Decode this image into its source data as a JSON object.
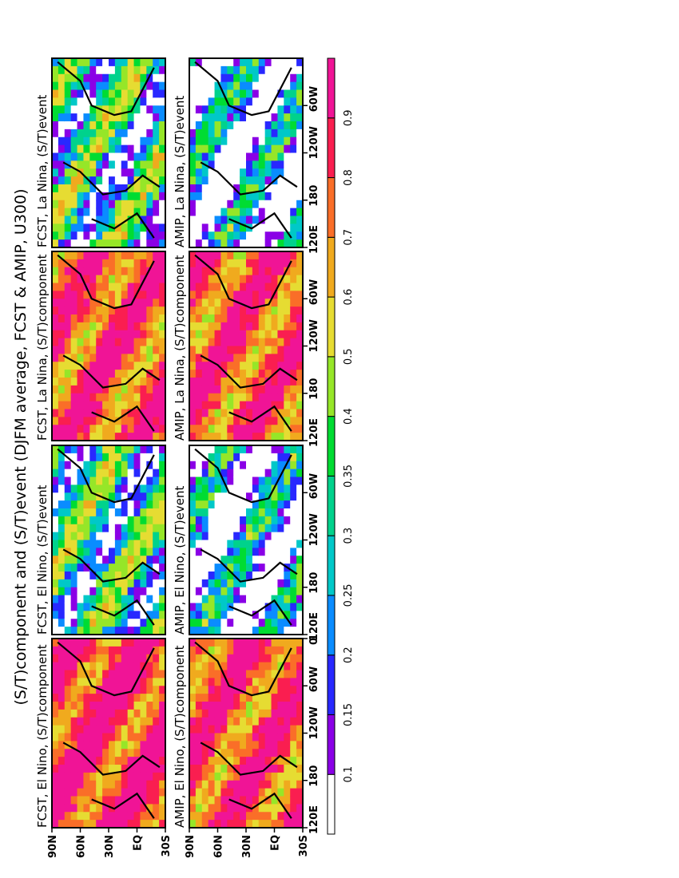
{
  "chart_data": {
    "type": "heatmap",
    "title": "(S/T)component and (S/T)event (DJFM average, FCST & AMIP, U300)",
    "grid": false,
    "legend_placement": "right",
    "orientation_note": "figure rotated 90 degrees counter-clockwise",
    "x_ticks": [
      "120E",
      "180",
      "120W",
      "60W",
      "0"
    ],
    "y_ticks": [
      "90N",
      "60N",
      "30N",
      "EQ",
      "30S"
    ],
    "xlim": [
      "120E",
      "0"
    ],
    "ylim": [
      "30S",
      "90N"
    ],
    "colorbar": {
      "levels": [
        "0.1",
        "0.15",
        "0.2",
        "0.25",
        "0.3",
        "0.35",
        "0.4",
        "0.5",
        "0.6",
        "0.7",
        "0.8",
        "0.9"
      ],
      "colors": [
        "#ffffff",
        "#8a00e6",
        "#2828ff",
        "#0a8cff",
        "#00c8c8",
        "#00d28c",
        "#00dc32",
        "#96e628",
        "#e6dc32",
        "#f0aa1e",
        "#fa6e28",
        "#fa1e50",
        "#f01496"
      ]
    },
    "panels": [
      {
        "title": "FCST, El Nino, (S/T)component",
        "model": "FCST",
        "enso": "El Nino",
        "measure": "component",
        "level": 0.85
      },
      {
        "title": "FCST, El Nino, (S/T)event",
        "model": "FCST",
        "enso": "El Nino",
        "measure": "event",
        "level": 0.3
      },
      {
        "title": "FCST, La Nina, (S/T)component",
        "model": "FCST",
        "enso": "La Nina",
        "measure": "component",
        "level": 0.8
      },
      {
        "title": "FCST, La Nina, (S/T)event",
        "model": "FCST",
        "enso": "La Nina",
        "measure": "event",
        "level": 0.3
      },
      {
        "title": "AMIP, El Nino, (S/T)component",
        "model": "AMIP",
        "enso": "El Nino",
        "measure": "component",
        "level": 0.8
      },
      {
        "title": "AMIP, El Nino, (S/T)event",
        "model": "AMIP",
        "enso": "El Nino",
        "measure": "event",
        "level": 0.15
      },
      {
        "title": "AMIP, La Nina, (S/T)component",
        "model": "AMIP",
        "enso": "La Nina",
        "measure": "component",
        "level": 0.8
      },
      {
        "title": "AMIP, La Nina, (S/T)event",
        "model": "AMIP",
        "enso": "La Nina",
        "measure": "event",
        "level": 0.15
      }
    ]
  }
}
